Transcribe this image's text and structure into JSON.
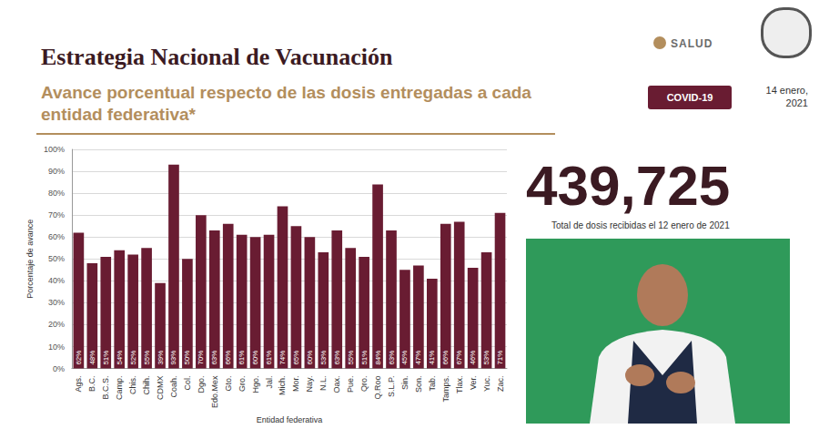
{
  "chart_data": {
    "type": "bar",
    "title": "Estrategia Nacional de Vacunación",
    "subtitle": "Avance porcentual respecto de las dosis entregadas a cada entidad federativa*",
    "x_label": "Entidad federativa",
    "y_label": "Porcentaje de avance",
    "categories": [
      "Ags.",
      "B.C.",
      "B.C.S.",
      "Camp.",
      "Chis.",
      "Chih.",
      "CDMX",
      "Coah.",
      "Col.",
      "Dgo.",
      "Edo.Mex",
      "Gto.",
      "Gro.",
      "Hgo.",
      "Jal.",
      "Mich.",
      "Mor.",
      "Nay.",
      "N.L.",
      "Oax.",
      "Pue.",
      "Qro.",
      "Q.Roo",
      "S.L.P.",
      "Sin.",
      "Son.",
      "Tab.",
      "Tamps.",
      "Tlax.",
      "Ver.",
      "Yuc.",
      "Zac."
    ],
    "values": [
      62,
      48,
      51,
      54,
      52,
      55,
      39,
      93,
      50,
      70,
      63,
      66,
      61,
      60,
      61,
      74,
      65,
      60,
      53,
      63,
      55,
      51,
      84,
      63,
      45,
      47,
      41,
      66,
      67,
      46,
      53,
      71
    ],
    "value_labels": [
      "62%",
      "48%",
      "51%",
      "54%",
      "52%",
      "55%",
      "39%",
      "93%",
      "50%",
      "70%",
      "63%",
      "66%",
      "61%",
      "60%",
      "61%",
      "74%",
      "65%",
      "60%",
      "53%",
      "63%",
      "55%",
      "51%",
      "84%",
      "63%",
      "45%",
      "47%",
      "41%",
      "66%",
      "67%",
      "46%",
      "53%",
      "71%"
    ],
    "color": "#691c32",
    "data_labels": true,
    "grid": true,
    "ylim": [
      0,
      100
    ],
    "yticks": [
      {
        "value": 0,
        "label": "0%"
      },
      {
        "value": 10,
        "label": "10%"
      },
      {
        "value": 20,
        "label": "20%"
      },
      {
        "value": 30,
        "label": "30%"
      },
      {
        "value": 40,
        "label": "40%"
      },
      {
        "value": 50,
        "label": "50%"
      },
      {
        "value": 60,
        "label": "60%"
      },
      {
        "value": 70,
        "label": "70%"
      },
      {
        "value": 80,
        "label": "80%"
      },
      {
        "value": 90,
        "label": "90%"
      },
      {
        "value": 100,
        "label": "100%"
      }
    ]
  },
  "header": {
    "logo": "SALUD",
    "badge": "COVID-19",
    "date": "14 enero, 2021"
  },
  "total": {
    "value": "439,725",
    "caption": "Total de dosis recibidas el 12 enero de 2021"
  }
}
